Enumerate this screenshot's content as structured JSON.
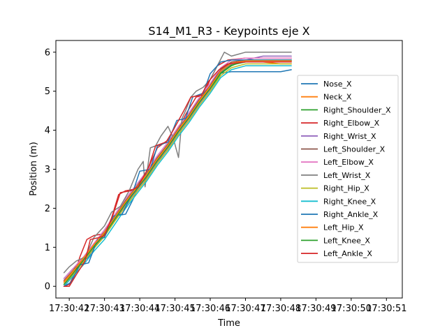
{
  "chart_data": {
    "type": "line",
    "title": "S14_M1_R3 - Keypoints eje X",
    "xlabel": "Time",
    "ylabel": "Position (m)",
    "x_ticks": [
      "17:30:42",
      "17:30:43",
      "17:30:44",
      "17:30:45",
      "17:30:46",
      "17:30:47",
      "17:30:48",
      "17:30:49",
      "17:30:50",
      "17:30:51"
    ],
    "y_ticks": [
      0,
      1,
      2,
      3,
      4,
      5,
      6
    ],
    "xlim": [
      41.62,
      51.45
    ],
    "ylim": [
      -0.3,
      6.3
    ],
    "x_unit": "seconds after 17:30:00",
    "legend_position": "center-right",
    "grid": false,
    "series": [
      {
        "name": "Nose_X",
        "color": "#1f77b4",
        "x": [
          41.85,
          42.1,
          42.35,
          42.55,
          42.8,
          43.1,
          43.3,
          43.6,
          43.85,
          44.0,
          44.35,
          44.6,
          44.8,
          45.1,
          45.35,
          45.6,
          45.9,
          46.2,
          46.6,
          47.0,
          47.5,
          48.0,
          48.3
        ],
        "y": [
          0.2,
          0.45,
          0.6,
          0.75,
          1.15,
          1.45,
          1.8,
          1.85,
          2.3,
          2.7,
          3.05,
          3.3,
          3.6,
          4.05,
          4.3,
          4.7,
          5.0,
          5.45,
          5.5,
          5.5,
          5.5,
          5.5,
          5.55
        ]
      },
      {
        "name": "Neck_X",
        "color": "#ff7f0e",
        "x": [
          41.85,
          42.1,
          42.4,
          42.7,
          43.0,
          43.3,
          43.6,
          43.9,
          44.2,
          44.5,
          44.8,
          45.1,
          45.4,
          45.7,
          46.0,
          46.3,
          46.6,
          47.0,
          47.5,
          48.0,
          48.3
        ],
        "y": [
          0.1,
          0.35,
          0.7,
          1.05,
          1.35,
          1.75,
          2.15,
          2.5,
          2.85,
          3.25,
          3.6,
          4.0,
          4.35,
          4.75,
          5.1,
          5.5,
          5.7,
          5.75,
          5.75,
          5.7,
          5.7
        ]
      },
      {
        "name": "Right_Shoulder_X",
        "color": "#2ca02c",
        "x": [
          41.85,
          42.1,
          42.4,
          42.7,
          43.0,
          43.3,
          43.6,
          43.9,
          44.2,
          44.5,
          44.8,
          45.1,
          45.4,
          45.7,
          46.0,
          46.3,
          46.6,
          47.0,
          47.5,
          48.0,
          48.3
        ],
        "y": [
          0.05,
          0.3,
          0.65,
          1.0,
          1.3,
          1.7,
          2.1,
          2.45,
          2.8,
          3.2,
          3.55,
          3.95,
          4.3,
          4.7,
          5.05,
          5.45,
          5.65,
          5.8,
          5.8,
          5.8,
          5.8
        ]
      },
      {
        "name": "Right_Elbow_X",
        "color": "#d62728",
        "x": [
          41.85,
          42.0,
          42.15,
          42.3,
          42.5,
          42.7,
          43.0,
          43.2,
          43.4,
          43.6,
          43.9,
          44.2,
          44.5,
          44.8,
          45.0,
          45.3,
          45.6,
          45.8,
          46.0,
          46.2,
          46.5,
          47.0,
          47.5,
          48.0,
          48.3
        ],
        "y": [
          0.0,
          0.05,
          0.3,
          0.75,
          1.2,
          1.3,
          1.35,
          1.75,
          2.35,
          2.45,
          2.5,
          2.95,
          3.55,
          3.75,
          3.85,
          4.4,
          4.85,
          4.9,
          5.3,
          5.65,
          5.8,
          5.85,
          5.85,
          5.85,
          5.85
        ]
      },
      {
        "name": "Right_Wrist_X",
        "color": "#9467bd",
        "x": [
          41.85,
          42.1,
          42.4,
          42.7,
          43.0,
          43.3,
          43.6,
          43.9,
          44.2,
          44.5,
          44.8,
          45.1,
          45.4,
          45.7,
          46.0,
          46.3,
          46.6,
          47.0,
          47.5,
          48.0,
          48.3
        ],
        "y": [
          0.0,
          0.3,
          0.65,
          1.0,
          1.3,
          1.7,
          2.1,
          2.45,
          2.8,
          3.2,
          3.55,
          3.95,
          4.3,
          4.7,
          5.05,
          5.5,
          5.7,
          5.8,
          5.9,
          5.9,
          5.9
        ]
      },
      {
        "name": "Left_Shoulder_X",
        "color": "#8c564b",
        "x": [
          41.85,
          42.1,
          42.4,
          42.7,
          43.0,
          43.3,
          43.6,
          43.9,
          44.2,
          44.5,
          44.8,
          45.1,
          45.4,
          45.7,
          46.0,
          46.3,
          46.6,
          47.0,
          47.5,
          48.0,
          48.3
        ],
        "y": [
          0.15,
          0.4,
          0.72,
          1.08,
          1.4,
          1.8,
          2.2,
          2.55,
          2.9,
          3.3,
          3.65,
          4.05,
          4.4,
          4.8,
          5.15,
          5.55,
          5.75,
          5.8,
          5.8,
          5.8,
          5.8
        ]
      },
      {
        "name": "Left_Elbow_X",
        "color": "#e377c2",
        "x": [
          41.85,
          42.1,
          42.4,
          42.7,
          43.0,
          43.3,
          43.6,
          43.9,
          44.2,
          44.5,
          44.8,
          45.1,
          45.4,
          45.7,
          46.0,
          46.3,
          46.6,
          47.0,
          47.5,
          48.0,
          48.3
        ],
        "y": [
          0.2,
          0.45,
          0.75,
          1.1,
          1.45,
          1.85,
          2.25,
          2.6,
          2.95,
          3.35,
          3.7,
          4.1,
          4.45,
          4.85,
          5.2,
          5.6,
          5.8,
          5.85,
          5.85,
          5.85,
          5.85
        ]
      },
      {
        "name": "Left_Wrist_X",
        "color": "#7f7f7f",
        "x": [
          41.85,
          42.0,
          42.2,
          42.45,
          42.7,
          43.0,
          43.2,
          43.45,
          43.7,
          43.95,
          44.1,
          44.15,
          44.3,
          44.45,
          44.6,
          44.8,
          44.95,
          45.1,
          45.2,
          45.3,
          45.45,
          45.6,
          45.8,
          46.0,
          46.2,
          46.4,
          46.6,
          46.8,
          47.0,
          47.5,
          48.0,
          48.3
        ],
        "y": [
          0.35,
          0.5,
          0.65,
          0.75,
          1.25,
          1.55,
          1.9,
          2.05,
          2.45,
          3.0,
          3.2,
          2.55,
          3.55,
          3.6,
          3.85,
          4.1,
          3.8,
          3.3,
          4.3,
          4.5,
          4.85,
          5.0,
          5.1,
          5.3,
          5.65,
          6.0,
          5.9,
          5.95,
          6.0,
          6.0,
          6.0,
          6.0
        ]
      },
      {
        "name": "Right_Hip_X",
        "color": "#bcbd22",
        "x": [
          41.85,
          42.1,
          42.4,
          42.7,
          43.0,
          43.3,
          43.6,
          43.9,
          44.2,
          44.5,
          44.8,
          45.1,
          45.4,
          45.7,
          46.0,
          46.3,
          46.6,
          47.0,
          47.5,
          48.0,
          48.3
        ],
        "y": [
          0.05,
          0.28,
          0.62,
          0.97,
          1.28,
          1.68,
          2.05,
          2.4,
          2.75,
          3.15,
          3.5,
          3.9,
          4.25,
          4.65,
          5.0,
          5.4,
          5.6,
          5.7,
          5.7,
          5.7,
          5.7
        ]
      },
      {
        "name": "Right_Knee_X",
        "color": "#17becf",
        "x": [
          41.85,
          42.1,
          42.4,
          42.7,
          43.0,
          43.3,
          43.6,
          43.9,
          44.2,
          44.5,
          44.8,
          45.1,
          45.4,
          45.7,
          46.0,
          46.3,
          46.6,
          47.0,
          47.5,
          48.0,
          48.3
        ],
        "y": [
          0.0,
          0.25,
          0.55,
          0.9,
          1.2,
          1.6,
          2.0,
          2.35,
          2.7,
          3.1,
          3.45,
          3.85,
          4.2,
          4.6,
          4.95,
          5.35,
          5.55,
          5.65,
          5.65,
          5.65,
          5.65
        ]
      },
      {
        "name": "Right_Ankle_X",
        "color": "#1f77b4",
        "x": [
          41.85,
          42.05,
          42.3,
          42.55,
          42.8,
          43.0,
          43.25,
          43.5,
          43.8,
          44.0,
          44.3,
          44.5,
          44.8,
          45.05,
          45.3,
          45.5,
          45.8,
          46.0,
          46.3,
          46.6,
          47.0,
          47.5,
          48.0,
          48.3
        ],
        "y": [
          0.0,
          0.1,
          0.55,
          0.6,
          1.2,
          1.25,
          1.8,
          1.85,
          2.4,
          2.95,
          3.0,
          3.6,
          3.7,
          4.25,
          4.3,
          4.85,
          4.95,
          5.45,
          5.75,
          5.8,
          5.8,
          5.8,
          5.8,
          5.8
        ]
      },
      {
        "name": "Left_Hip_X",
        "color": "#ff7f0e",
        "x": [
          41.85,
          42.1,
          42.4,
          42.7,
          43.0,
          43.3,
          43.6,
          43.9,
          44.2,
          44.5,
          44.8,
          45.1,
          45.4,
          45.7,
          46.0,
          46.3,
          46.6,
          47.0,
          47.5,
          48.0,
          48.3
        ],
        "y": [
          0.12,
          0.38,
          0.72,
          1.07,
          1.38,
          1.78,
          2.17,
          2.52,
          2.87,
          3.27,
          3.62,
          4.02,
          4.37,
          4.77,
          5.12,
          5.52,
          5.72,
          5.78,
          5.78,
          5.78,
          5.78
        ]
      },
      {
        "name": "Left_Knee_X",
        "color": "#2ca02c",
        "x": [
          41.85,
          42.1,
          42.4,
          42.7,
          43.0,
          43.3,
          43.6,
          43.9,
          44.2,
          44.5,
          44.8,
          45.1,
          45.4,
          45.7,
          46.0,
          46.3,
          46.6,
          47.0,
          47.5,
          48.0,
          48.3
        ],
        "y": [
          0.05,
          0.32,
          0.67,
          1.02,
          1.33,
          1.73,
          2.12,
          2.47,
          2.82,
          3.22,
          3.57,
          3.97,
          4.32,
          4.72,
          5.07,
          5.47,
          5.67,
          5.75,
          5.75,
          5.75,
          5.75
        ]
      },
      {
        "name": "Left_Ankle_X",
        "color": "#d62728",
        "x": [
          41.85,
          42.0,
          42.2,
          42.45,
          42.6,
          42.85,
          43.0,
          43.25,
          43.45,
          43.75,
          43.95,
          44.25,
          44.45,
          44.75,
          44.95,
          45.25,
          45.45,
          45.75,
          45.95,
          46.25,
          46.5,
          47.0,
          47.5,
          48.0,
          48.3
        ],
        "y": [
          0.0,
          0.0,
          0.3,
          0.65,
          1.2,
          1.25,
          1.3,
          1.85,
          2.4,
          2.45,
          2.55,
          3.05,
          3.6,
          3.7,
          4.0,
          4.5,
          4.85,
          4.9,
          5.25,
          5.55,
          5.7,
          5.75,
          5.75,
          5.75,
          5.75
        ]
      }
    ]
  }
}
